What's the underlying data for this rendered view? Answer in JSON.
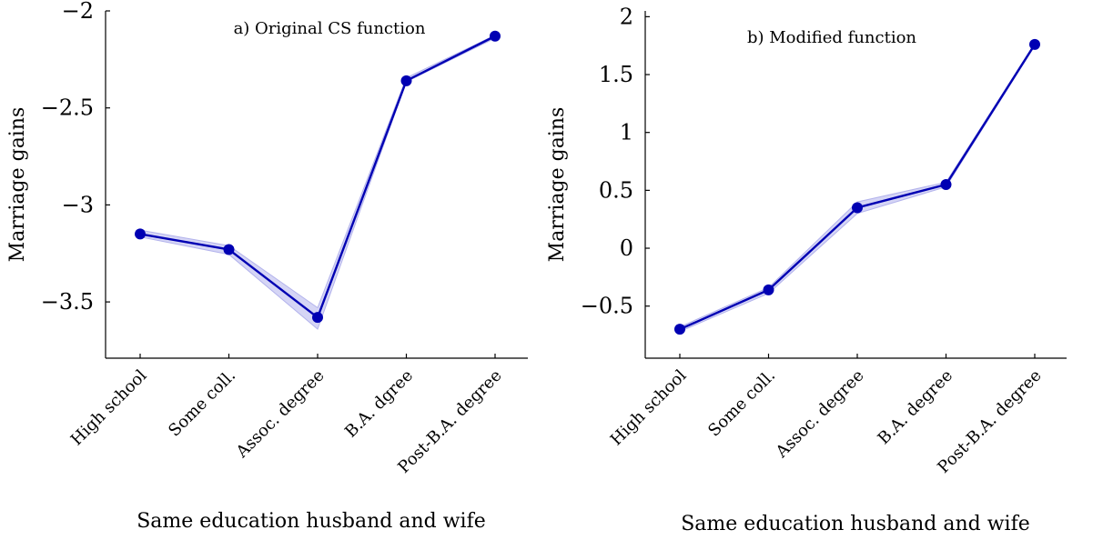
{
  "chart_data": [
    {
      "type": "line",
      "title": "a) Original CS function",
      "xlabel": "Same education husband and wife",
      "ylabel": "Marriage gains",
      "categories": [
        "High school",
        "Some coll.",
        "Assoc. degree",
        "B.A. dgree",
        "Post-B.A. degree"
      ],
      "series": [
        {
          "values": [
            -3.15,
            -3.23,
            -3.58,
            -2.36,
            -2.13
          ],
          "band_lower": [
            -3.165,
            -3.255,
            -3.64,
            -2.365,
            -2.14
          ],
          "band_upper": [
            -3.13,
            -3.21,
            -3.53,
            -2.345,
            -2.125
          ]
        }
      ],
      "ylim": [
        -3.79,
        -2.0
      ],
      "yticks": [
        -3.5,
        -3.0,
        -2.5,
        -2.0
      ],
      "ytick_labels": [
        "−3.5",
        "−3",
        "−2.5",
        "−2"
      ],
      "grid": false,
      "colors": {
        "line": "#0000b3",
        "band": "#b3b3ec"
      }
    },
    {
      "type": "line",
      "title": "b) Modified function",
      "xlabel": "Same education husband and wife",
      "ylabel": "Marriage gains",
      "categories": [
        "High school",
        "Some coll.",
        "Assoc. degree",
        "B.A. degree",
        "Post-B.A. degree"
      ],
      "series": [
        {
          "values": [
            -0.7,
            -0.36,
            0.35,
            0.55,
            1.76
          ],
          "band_lower": [
            -0.72,
            -0.39,
            0.3,
            0.53,
            1.75
          ],
          "band_upper": [
            -0.68,
            -0.34,
            0.4,
            0.57,
            1.77
          ]
        }
      ],
      "ylim": [
        -0.95,
        2.05
      ],
      "yticks": [
        -0.5,
        0,
        0.5,
        1.0,
        1.5,
        2.0
      ],
      "ytick_labels": [
        "−0.5",
        "0",
        "0.5",
        "1",
        "1.5",
        "2"
      ],
      "grid": false,
      "colors": {
        "line": "#0000b3",
        "band": "#b3b3ec"
      }
    }
  ]
}
